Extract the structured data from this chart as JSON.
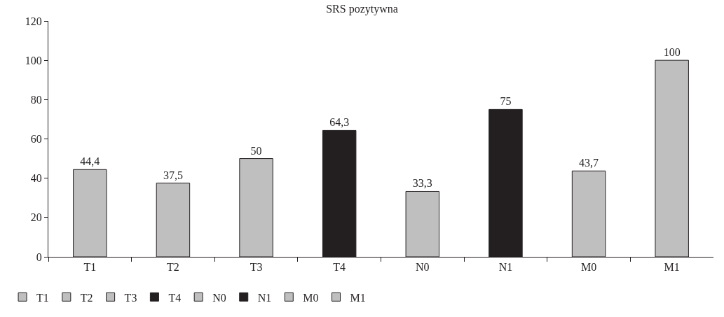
{
  "chart_data": {
    "type": "bar",
    "title": "SRS pozytywna",
    "categories": [
      "T1",
      "T2",
      "T3",
      "T4",
      "N0",
      "N1",
      "M0",
      "M1"
    ],
    "series": [
      {
        "name": "T1",
        "color": "#bfbfbf",
        "values": [
          44.4,
          null,
          null,
          null,
          null,
          null,
          null,
          null
        ],
        "value_labels": [
          "44,4",
          null,
          null,
          null,
          null,
          null,
          null,
          null
        ]
      },
      {
        "name": "T2",
        "color": "#bfbfbf",
        "values": [
          null,
          37.5,
          null,
          null,
          null,
          null,
          null,
          null
        ],
        "value_labels": [
          null,
          "37,5",
          null,
          null,
          null,
          null,
          null,
          null
        ]
      },
      {
        "name": "T3",
        "color": "#bfbfbf",
        "values": [
          null,
          null,
          50,
          null,
          null,
          null,
          null,
          null
        ],
        "value_labels": [
          null,
          null,
          "50",
          null,
          null,
          null,
          null,
          null
        ]
      },
      {
        "name": "T4",
        "color": "#231f20",
        "values": [
          null,
          null,
          null,
          64.3,
          null,
          null,
          null,
          null
        ],
        "value_labels": [
          null,
          null,
          null,
          "64,3",
          null,
          null,
          null,
          null
        ]
      },
      {
        "name": "N0",
        "color": "#bfbfbf",
        "values": [
          null,
          null,
          null,
          null,
          33.3,
          null,
          null,
          null
        ],
        "value_labels": [
          null,
          null,
          null,
          null,
          "33,3",
          null,
          null,
          null
        ]
      },
      {
        "name": "N1",
        "color": "#231f20",
        "values": [
          null,
          null,
          null,
          null,
          null,
          75,
          null,
          null
        ],
        "value_labels": [
          null,
          null,
          null,
          null,
          null,
          "75",
          null,
          null
        ]
      },
      {
        "name": "M0",
        "color": "#bfbfbf",
        "values": [
          null,
          null,
          null,
          null,
          null,
          null,
          43.7,
          null
        ],
        "value_labels": [
          null,
          null,
          null,
          null,
          null,
          null,
          "43,7",
          null
        ]
      },
      {
        "name": "M1",
        "color": "#bfbfbf",
        "values": [
          null,
          null,
          null,
          null,
          null,
          null,
          null,
          100
        ],
        "value_labels": [
          null,
          null,
          null,
          null,
          null,
          null,
          null,
          "100"
        ]
      }
    ],
    "ylim": [
      0,
      120
    ],
    "yticks": [
      0,
      20,
      40,
      60,
      80,
      100,
      120
    ],
    "grid": false,
    "legend": "bottom left"
  }
}
